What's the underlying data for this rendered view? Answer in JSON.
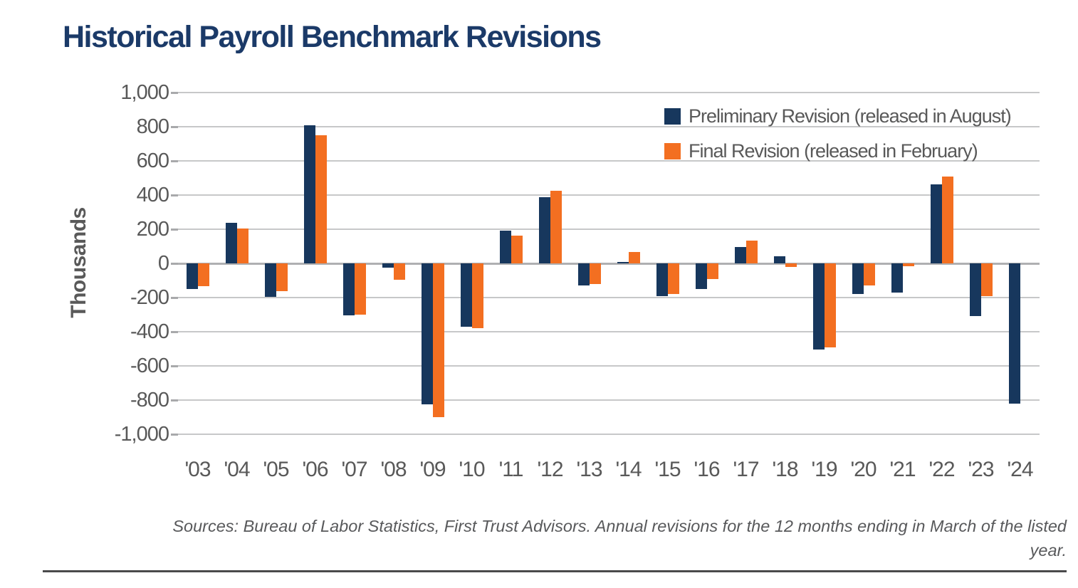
{
  "title": "Historical Payroll Benchmark Revisions",
  "colors": {
    "navy": "#17375D",
    "orange": "#F36F21",
    "title_text": "#1B3A68",
    "axis_text": "#595959",
    "gridline": "#C7C8C9",
    "zero_line": "#AFB0B2",
    "bottom_rule": "#4A4A4B"
  },
  "chart_data": {
    "type": "bar",
    "title": "Historical Payroll Benchmark Revisions",
    "xlabel": "",
    "ylabel": "Thousands",
    "ylim": [
      -1000,
      1000
    ],
    "y_tick_step": 200,
    "y_tick_labels": [
      "1,000",
      "800",
      "600",
      "400",
      "200",
      "0",
      "-200",
      "-400",
      "-600",
      "-800",
      "-1,000"
    ],
    "grid": true,
    "legend_position": "top-right",
    "categories": [
      "'03",
      "'04",
      "'05",
      "'06",
      "'07",
      "'08",
      "'09",
      "'10",
      "'11",
      "'12",
      "'13",
      "'14",
      "'15",
      "'16",
      "'17",
      "'18",
      "'19",
      "'20",
      "'21",
      "'22",
      "'23",
      "'24"
    ],
    "series": [
      {
        "name": "Preliminary Revision (released in August)",
        "color_key": "navy",
        "values": [
          -150,
          236,
          -197,
          810,
          -305,
          -25,
          -824,
          -370,
          192,
          386,
          -130,
          7,
          -190,
          -152,
          95,
          43,
          -505,
          -180,
          -172,
          462,
          -310,
          -820
        ]
      },
      {
        "name": "Final Revision (released in February)",
        "color_key": "orange",
        "values": [
          -135,
          203,
          -162,
          752,
          -300,
          -95,
          -902,
          -380,
          163,
          424,
          -122,
          67,
          -180,
          -92,
          134,
          -20,
          -490,
          -130,
          -15,
          507,
          -192,
          null
        ]
      }
    ]
  },
  "source_note_lines": [
    "Sources: Bureau of Labor Statistics, First Trust Advisors. Annual revisions for the 12 months ending in March of the listed",
    "year."
  ]
}
